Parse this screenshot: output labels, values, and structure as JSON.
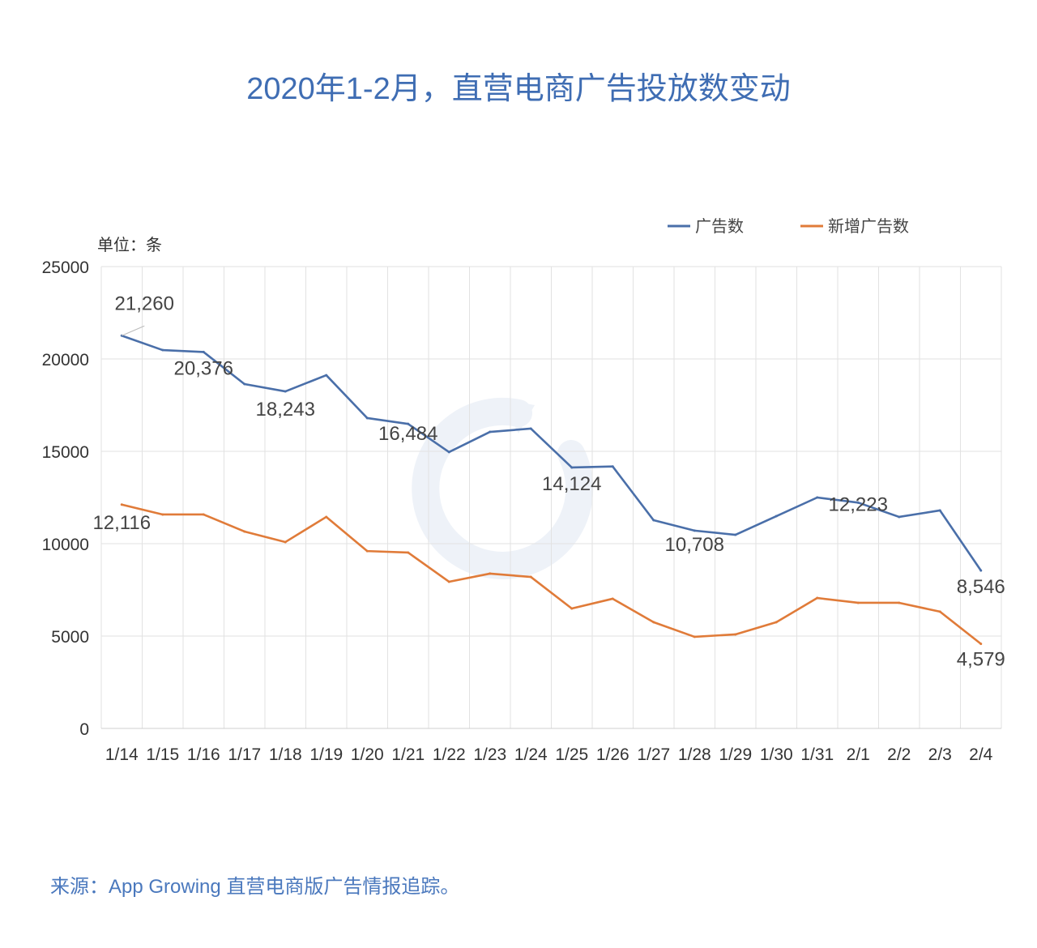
{
  "title": "2020年1-2月，直营电商广告投放数变动",
  "source": "来源：App Growing 直营电商版广告情报追踪。",
  "watermark": "AppGrowing",
  "chart_data": {
    "type": "line",
    "title": "2020年1-2月，直营电商广告投放数变动",
    "unit_label": "单位：条",
    "xlabel": "",
    "ylabel": "",
    "categories": [
      "1/14",
      "1/15",
      "1/16",
      "1/17",
      "1/18",
      "1/19",
      "1/20",
      "1/21",
      "1/22",
      "1/23",
      "1/24",
      "1/25",
      "1/26",
      "1/27",
      "1/28",
      "1/29",
      "1/30",
      "1/31",
      "2/1",
      "2/2",
      "2/3",
      "2/4"
    ],
    "ylim": [
      0,
      25000
    ],
    "yticks": [
      0,
      5000,
      10000,
      15000,
      20000,
      25000
    ],
    "grid": true,
    "legend_position": "top-right",
    "series": [
      {
        "name": "广告数",
        "color": "#4a6fa9",
        "values": [
          21260,
          20480,
          20376,
          18640,
          18243,
          19120,
          16800,
          16484,
          14960,
          16050,
          16230,
          14124,
          14180,
          11270,
          10708,
          10480,
          11490,
          12500,
          12223,
          11450,
          11800,
          8546
        ],
        "labeled_points": [
          {
            "index": 0,
            "text": "21,260"
          },
          {
            "index": 2,
            "text": "20,376"
          },
          {
            "index": 4,
            "text": "18,243"
          },
          {
            "index": 7,
            "text": "16,484"
          },
          {
            "index": 11,
            "text": "14,124"
          },
          {
            "index": 14,
            "text": "10,708"
          },
          {
            "index": 18,
            "text": "12,223"
          },
          {
            "index": 21,
            "text": "8,546"
          }
        ]
      },
      {
        "name": "新增广告数",
        "color": "#e07b39",
        "values": [
          12116,
          11580,
          11580,
          10660,
          10090,
          11450,
          9600,
          9520,
          7940,
          8380,
          8200,
          6490,
          7020,
          5750,
          4960,
          5090,
          5750,
          7060,
          6800,
          6800,
          6320,
          4579
        ],
        "labeled_points": [
          {
            "index": 0,
            "text": "12,116"
          },
          {
            "index": 21,
            "text": "4,579"
          }
        ]
      }
    ]
  }
}
